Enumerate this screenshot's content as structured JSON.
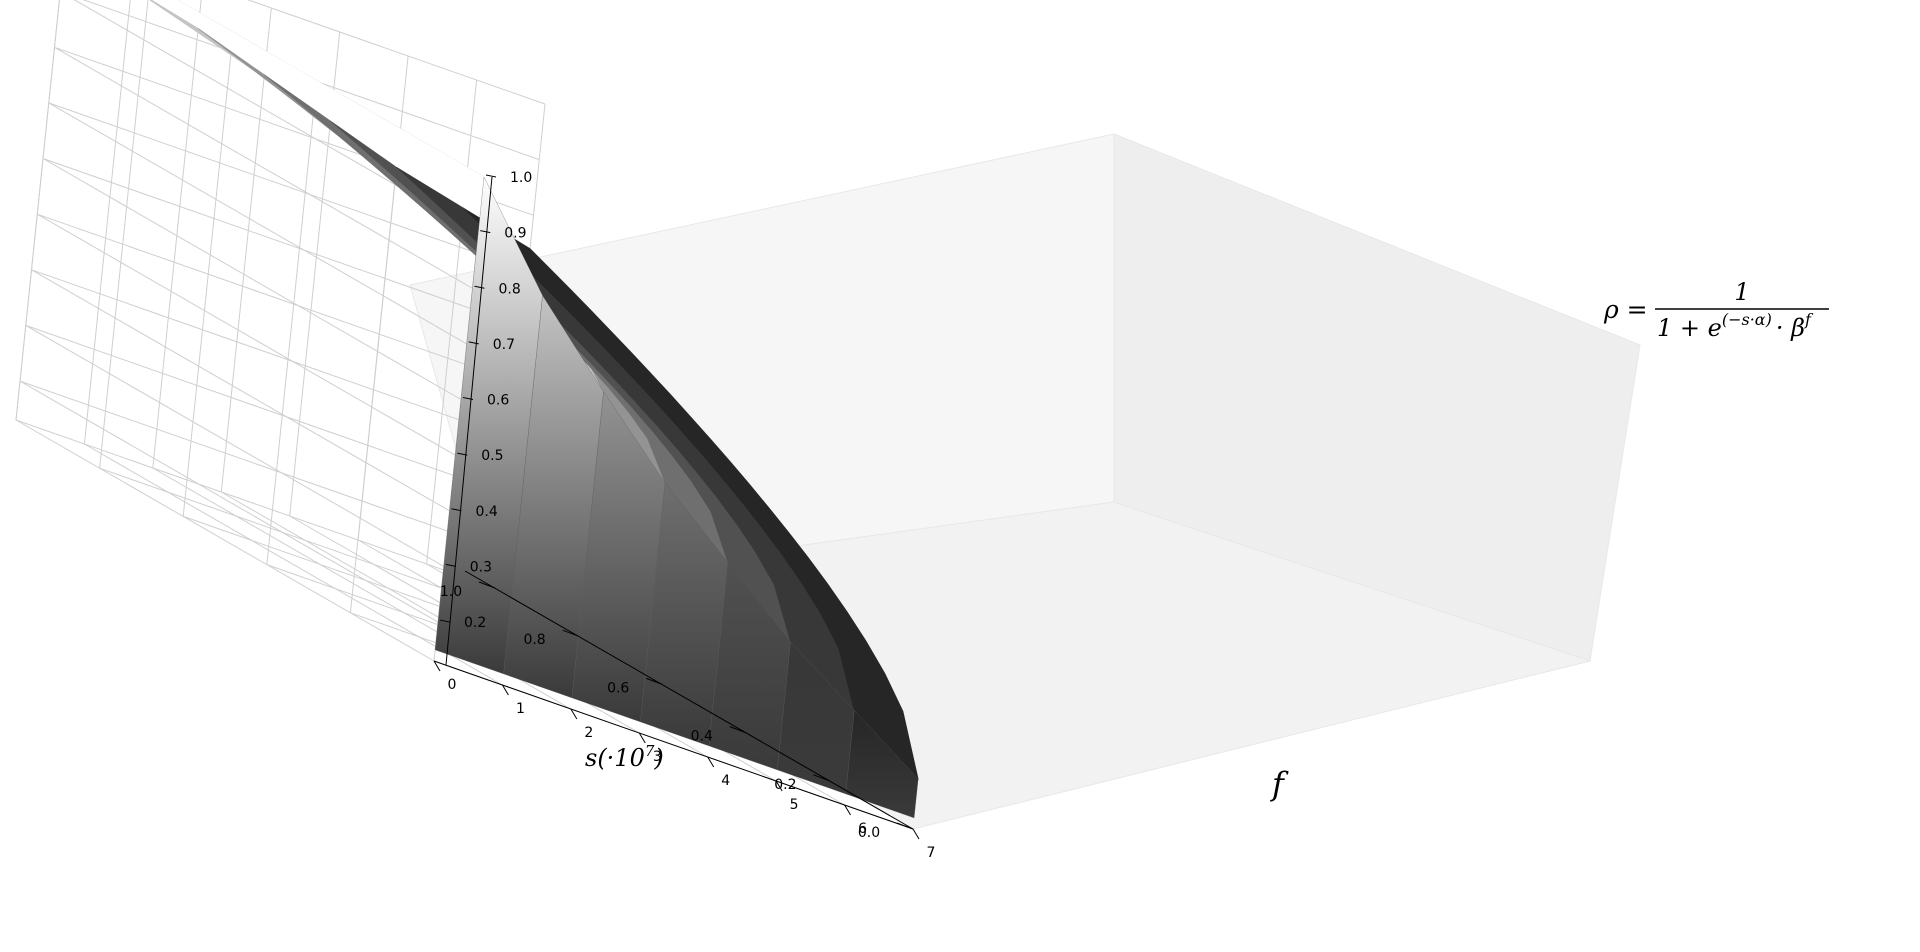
{
  "chart_data": {
    "type": "surface-3d",
    "x_axis": {
      "label": "f",
      "ticks": [
        "0",
        "1",
        "2",
        "3",
        "4",
        "5",
        "6",
        "7"
      ],
      "range": [
        0,
        7
      ]
    },
    "y_axis": {
      "label_prefix": "s(·10",
      "label_exp": "7",
      "label_suffix": ")",
      "ticks": [
        "0.0",
        "0.2",
        "0.4",
        "0.6",
        "0.8",
        "1.0"
      ],
      "range": [
        0,
        1
      ]
    },
    "z_axis": {
      "label_lhs": "ρ =",
      "label_numerator": "1",
      "label_den_base": "1 + e",
      "label_den_exp": "(−s·α)",
      "label_den_tail": "· β",
      "label_den_tail_exp": "f",
      "ticks": [
        "0.2",
        "0.3",
        "0.4",
        "0.5",
        "0.6",
        "0.7",
        "0.8",
        "0.9",
        "1.0"
      ],
      "range": [
        0.13,
        1.0
      ]
    },
    "surface": {
      "f_levels": [
        0,
        1,
        2,
        3,
        4,
        5,
        6,
        7
      ],
      "rho_at_s0": [
        1.0,
        0.83,
        0.7,
        0.58,
        0.48,
        0.38,
        0.3,
        0.22
      ],
      "rho_at_s1": [
        1.0,
        0.95,
        0.92,
        0.88,
        0.84,
        0.8,
        0.77,
        0.74
      ],
      "band_gray": [
        "#ffffff",
        "#c4c4c4",
        "#939393",
        "#6f6f6f",
        "#515151",
        "#383838",
        "#262626"
      ]
    }
  }
}
